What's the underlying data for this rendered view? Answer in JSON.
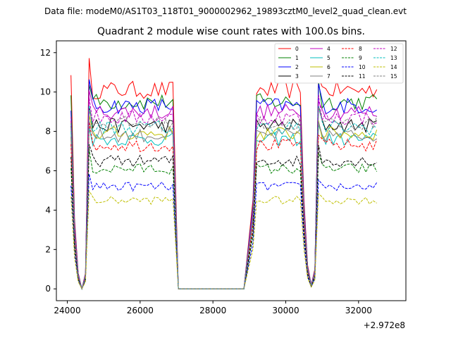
{
  "chart_data": {
    "type": "line",
    "suptitle": "Data file: modeM0/AS1T03_118T01_9000002962_19893cztM0_level2_quad_clean.evt",
    "title": "Quadrant 2 module wise count rates with 100.0s bins.",
    "xlabel": "",
    "ylabel": "",
    "x_offset_label": "+2.972e8",
    "xlim": [
      23700,
      33300
    ],
    "ylim": [
      -0.6,
      12.6
    ],
    "xticks": [
      24000,
      26000,
      28000,
      30000,
      32000
    ],
    "yticks": [
      0,
      2,
      4,
      6,
      8,
      10,
      12
    ],
    "grid": false,
    "legend_location": "top-right",
    "legend_columns": 4,
    "segments": [
      {
        "start": 24100,
        "end": 26950
      },
      {
        "start": 29100,
        "end": 32550
      }
    ],
    "series": [
      {
        "name": "0",
        "color": "#ff0000",
        "dashed": false,
        "level": 10.1
      },
      {
        "name": "1",
        "color": "#008000",
        "dashed": false,
        "level": 9.5
      },
      {
        "name": "2",
        "color": "#0000ff",
        "dashed": false,
        "level": 9.3
      },
      {
        "name": "3",
        "color": "#000000",
        "dashed": false,
        "level": 8.3
      },
      {
        "name": "4",
        "color": "#c000c0",
        "dashed": false,
        "level": 9.0
      },
      {
        "name": "5",
        "color": "#00bfbf",
        "dashed": false,
        "level": 7.6
      },
      {
        "name": "6",
        "color": "#bfbf00",
        "dashed": false,
        "level": 7.9
      },
      {
        "name": "7",
        "color": "#808080",
        "dashed": false,
        "level": 7.8
      },
      {
        "name": "8",
        "color": "#ff0000",
        "dashed": true,
        "level": 7.3
      },
      {
        "name": "9",
        "color": "#008000",
        "dashed": true,
        "level": 6.1
      },
      {
        "name": "10",
        "color": "#0000ff",
        "dashed": true,
        "level": 5.2
      },
      {
        "name": "11",
        "color": "#000000",
        "dashed": true,
        "level": 6.5
      },
      {
        "name": "12",
        "color": "#c000c0",
        "dashed": true,
        "level": 8.7
      },
      {
        "name": "13",
        "color": "#00bfbf",
        "dashed": true,
        "level": 8.2
      },
      {
        "name": "14",
        "color": "#bfbf00",
        "dashed": true,
        "level": 4.5
      },
      {
        "name": "15",
        "color": "#808080",
        "dashed": true,
        "level": 8.4
      }
    ]
  }
}
